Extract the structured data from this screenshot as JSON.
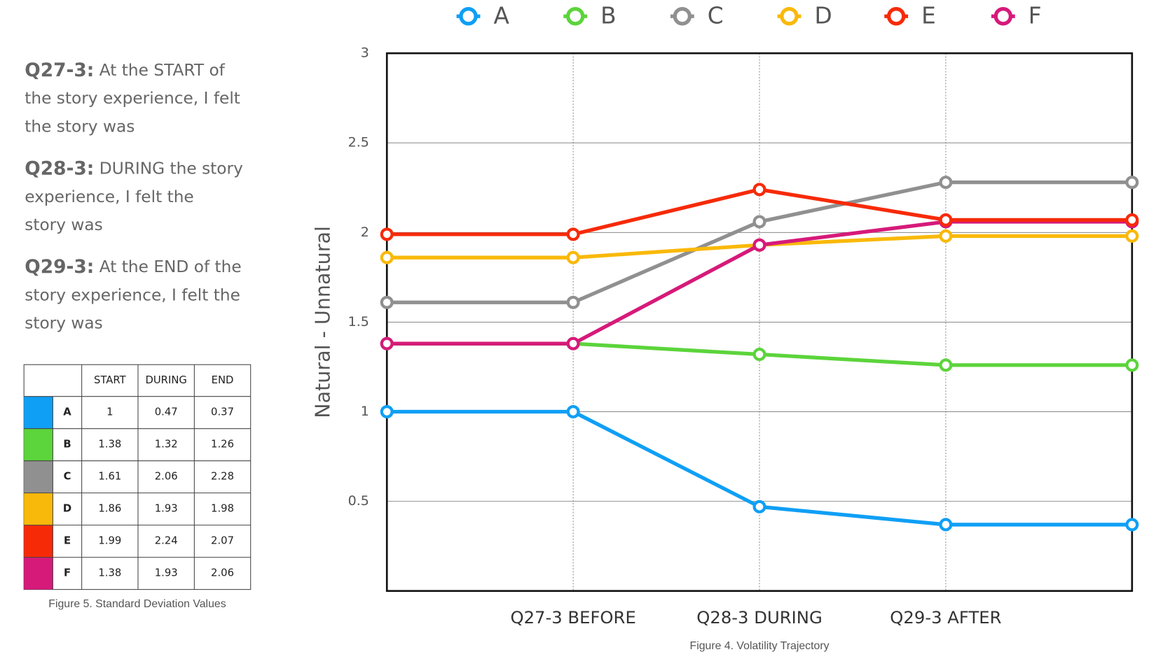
{
  "questions": [
    {
      "label": "Q27-3:",
      "lines": [
        "At the START of",
        "the story experience, I felt",
        "the story was"
      ]
    },
    {
      "label": "Q28-3:",
      "lines": [
        "DURING the story",
        "experience, I felt the",
        "story was"
      ]
    },
    {
      "label": "Q29-3:",
      "lines": [
        "At the END of the",
        "story experience, I felt the",
        "story was"
      ]
    }
  ],
  "table": {
    "columns": [
      "START",
      "DURING",
      "END"
    ],
    "rows": [
      {
        "label": "A",
        "color": "#0f9ff5",
        "values": [
          1,
          0.47,
          0.37
        ]
      },
      {
        "label": "B",
        "color": "#5cd43b",
        "values": [
          1.38,
          1.32,
          1.26
        ]
      },
      {
        "label": "C",
        "color": "#909090",
        "values": [
          1.61,
          2.06,
          2.28
        ]
      },
      {
        "label": "D",
        "color": "#f9b90a",
        "values": [
          1.86,
          1.93,
          1.98
        ]
      },
      {
        "label": "E",
        "color": "#f72a08",
        "values": [
          1.99,
          2.24,
          2.07
        ]
      },
      {
        "label": "F",
        "color": "#d61a7a",
        "values": [
          1.38,
          1.93,
          2.06
        ]
      }
    ],
    "caption": "Figure 5. Standard Deviation Values"
  },
  "chart_data": {
    "type": "line",
    "caption": "Figure 4. Volatility Trajectory",
    "y_label": "Natural - Unnatural",
    "categories": [
      null,
      "Q27-3 BEFORE",
      "Q28-3 DURING",
      "Q29-3 AFTER",
      null
    ],
    "series": [
      {
        "name": "A",
        "color": "#0f9ff5",
        "values": [
          1,
          1,
          0.47,
          0.37,
          0.37
        ]
      },
      {
        "name": "B",
        "color": "#5cd43b",
        "values": [
          1.38,
          1.38,
          1.32,
          1.26,
          1.26
        ]
      },
      {
        "name": "C",
        "color": "#909090",
        "values": [
          1.61,
          1.61,
          2.06,
          2.28,
          2.28
        ]
      },
      {
        "name": "D",
        "color": "#f9b90a",
        "values": [
          1.86,
          1.86,
          1.93,
          1.98,
          1.98
        ]
      },
      {
        "name": "E",
        "color": "#f72a08",
        "values": [
          1.99,
          1.99,
          2.24,
          2.07,
          2.07
        ]
      },
      {
        "name": "F",
        "color": "#d61a7a",
        "values": [
          1.38,
          1.38,
          1.93,
          2.06,
          2.06
        ]
      }
    ],
    "ylim": [
      0,
      3
    ],
    "yticks": [
      0.5,
      1,
      1.5,
      2,
      2.5,
      3
    ],
    "grid": true,
    "legend": "top"
  }
}
